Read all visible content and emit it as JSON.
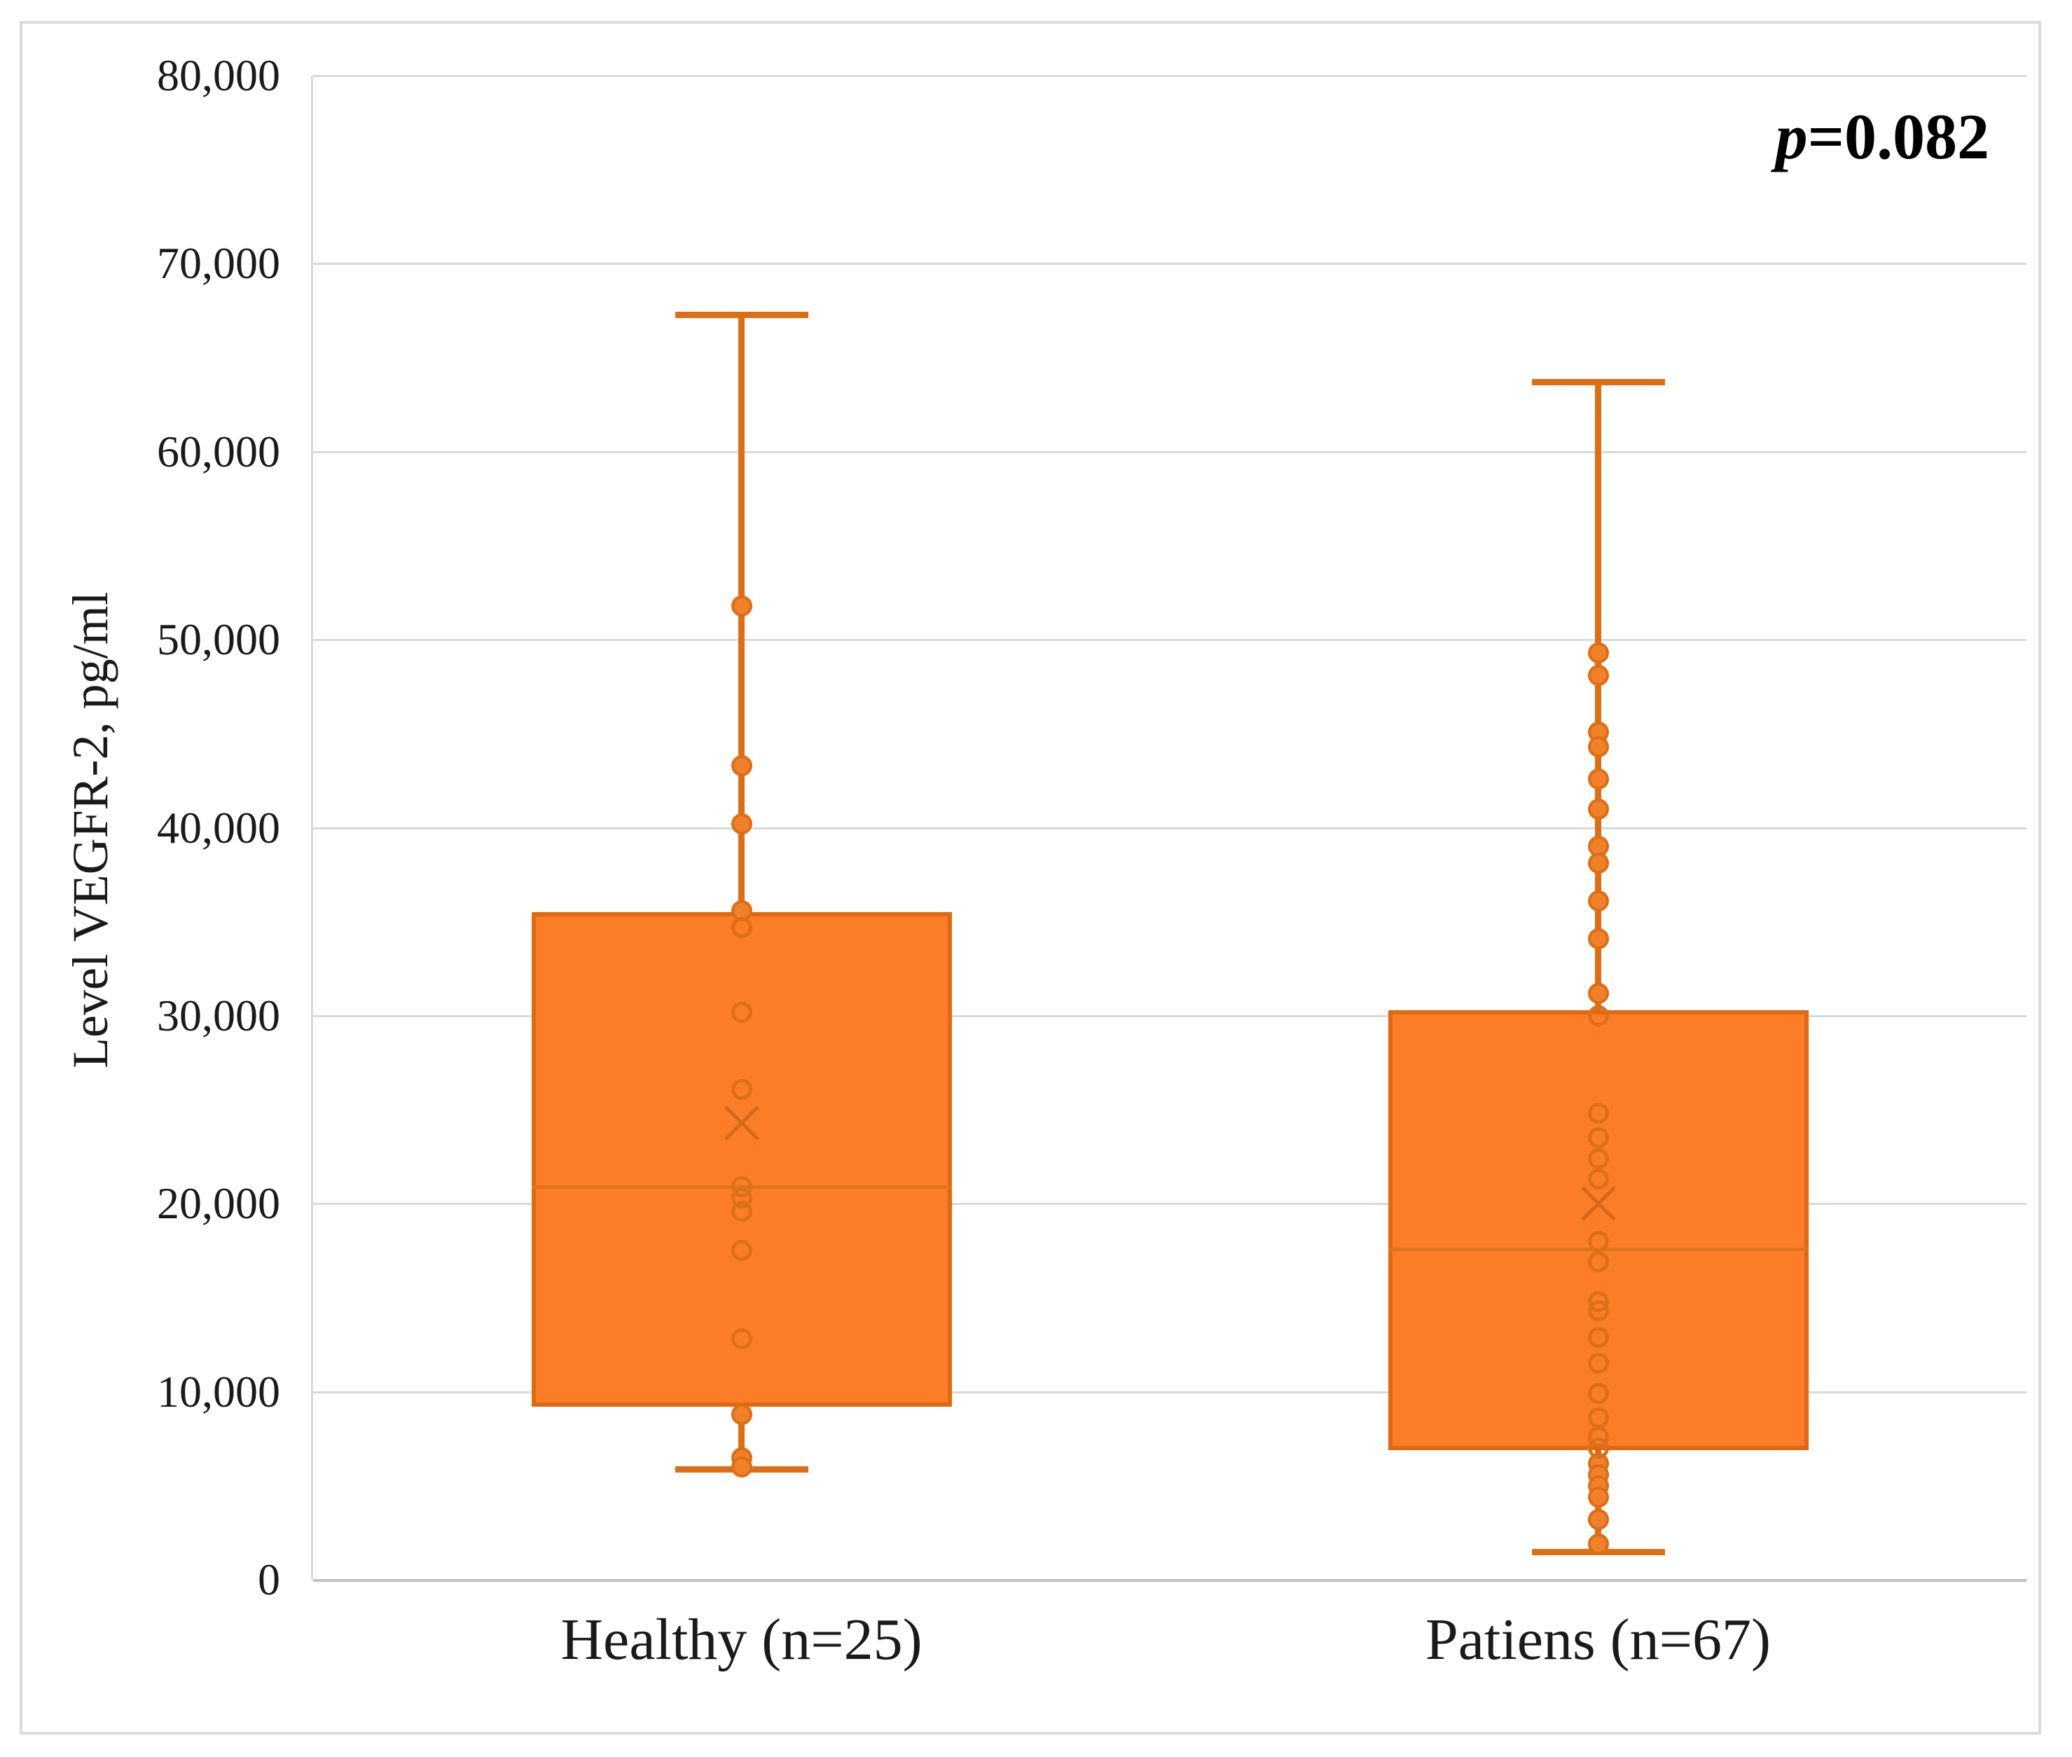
{
  "chart_data": {
    "type": "boxplot",
    "ylabel": "Level VEGFR-2, pg/ml",
    "xlabel": "",
    "ylim": [
      0,
      80000
    ],
    "grid": true,
    "legend": "none",
    "annotation": {
      "p_symbol": "p",
      "p_rest": "=0.082"
    },
    "y_ticks": [
      {
        "value": 0,
        "label": "0"
      },
      {
        "value": 10000,
        "label": "10,000"
      },
      {
        "value": 20000,
        "label": "20,000"
      },
      {
        "value": 30000,
        "label": "30,000"
      },
      {
        "value": 40000,
        "label": "40,000"
      },
      {
        "value": 50000,
        "label": "50,000"
      },
      {
        "value": 60000,
        "label": "60,000"
      },
      {
        "value": 70000,
        "label": "70,000"
      },
      {
        "value": 80000,
        "label": "80,000"
      }
    ],
    "groups": [
      {
        "label": "Healthy (n=25)",
        "min": 5900,
        "q1": 9200,
        "median": 20900,
        "q3": 35500,
        "max": 67300,
        "mean": 24300,
        "points_filled": [
          51800,
          43300,
          40200,
          35600,
          8800,
          6500,
          6000
        ],
        "points_open": [
          34700,
          30200,
          26100,
          20900,
          20300,
          19600,
          17500,
          12800
        ]
      },
      {
        "label": "Patiens (n=67)",
        "min": 1500,
        "q1": 6900,
        "median": 17600,
        "q3": 30300,
        "max": 63700,
        "mean": 20000,
        "points_filled": [
          49300,
          48100,
          45100,
          44300,
          42600,
          41000,
          39000,
          38100,
          36100,
          34100,
          31200,
          6200,
          5600,
          5000,
          4400,
          3200,
          1900
        ],
        "points_open": [
          30000,
          24800,
          23500,
          22400,
          21300,
          18000,
          16900,
          14800,
          14300,
          12900,
          11500,
          9900,
          8600,
          7600,
          7000
        ]
      }
    ],
    "colors": {
      "box_fill": "#FB7D28",
      "box_border": "#E0690F",
      "whisker": "#DE6E14",
      "median": "#DE741E",
      "mean_marker": "#D4691A",
      "dot_filled": "#F0802A",
      "dot_stroke": "#DD6E14",
      "gridline": "#D9D9D9",
      "axis_line": "#C3C3C3",
      "text": "#1a1a1a"
    }
  }
}
